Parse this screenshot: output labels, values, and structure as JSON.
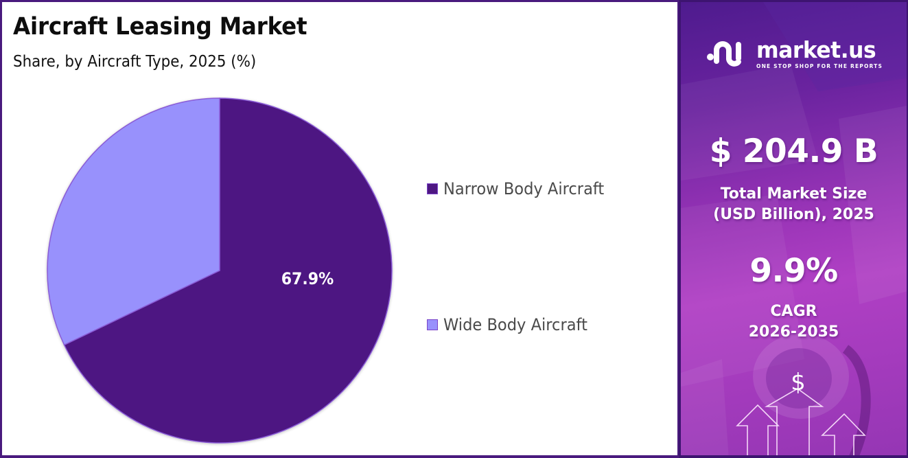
{
  "chart_title": "Aircraft Leasing Market",
  "chart_subtitle": "Share, by Aircraft Type, 2025 (%)",
  "legend": [
    {
      "label": "Narrow Body Aircraft",
      "color": "#4E1782"
    },
    {
      "label": "Wide Body Aircraft",
      "color": "#9891FC"
    }
  ],
  "pie_labels": {
    "narrow_body": "67.9%"
  },
  "side_panel": {
    "brand_name": "market.us",
    "brand_tagline": "ONE STOP SHOP FOR THE REPORTS",
    "market_size_value": "$ 204.9 B",
    "market_size_label_line1": "Total Market Size",
    "market_size_label_line2": "(USD Billion), 2025",
    "cagr_value": "9.9%",
    "cagr_label_line1": "CAGR",
    "cagr_label_line2": "2026-2035",
    "dollar_symbol": "$"
  },
  "colors": {
    "frame_border": "#4A1A7E",
    "narrow_body": "#4E1782",
    "wide_body": "#9891FC",
    "slice_stroke": "#8A5BD6",
    "panel_gradient_top": "#4E1B8E",
    "panel_gradient_mid": "#B040C4"
  },
  "chart_data": {
    "type": "pie",
    "title": "Aircraft Leasing Market",
    "subtitle": "Share, by Aircraft Type, 2025 (%)",
    "categories": [
      "Narrow Body Aircraft",
      "Wide Body Aircraft"
    ],
    "values": [
      67.9,
      32.1
    ],
    "colors": [
      "#4E1782",
      "#9891FC"
    ],
    "data_labels": [
      "67.9%",
      ""
    ],
    "start_angle": "12 o'clock, clockwise",
    "legend_position": "right",
    "unit": "%"
  }
}
